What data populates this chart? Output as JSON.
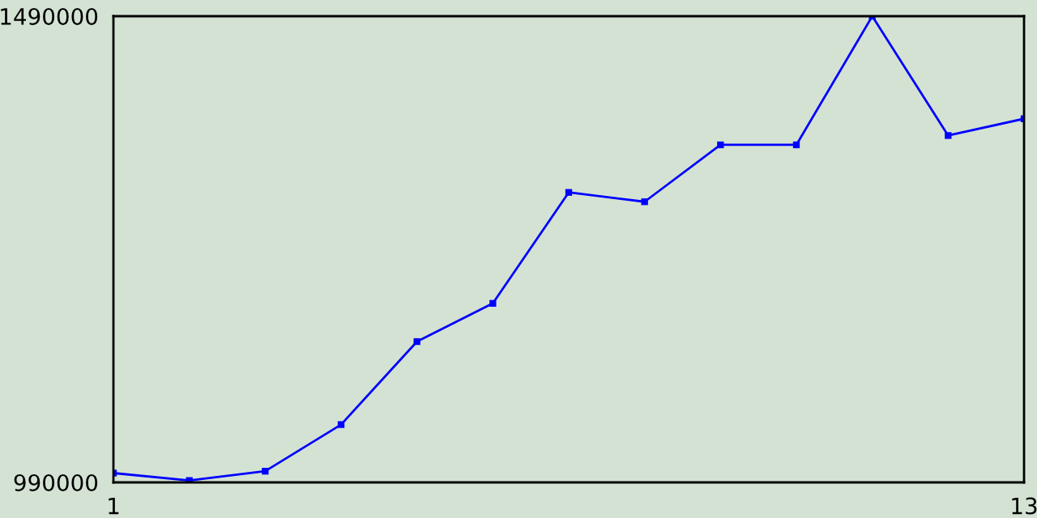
{
  "chart_data": {
    "type": "line",
    "x": [
      1,
      2,
      3,
      4,
      5,
      6,
      7,
      8,
      9,
      10,
      11,
      12,
      13
    ],
    "series": [
      {
        "color": "#0000ff",
        "values": [
          1000000,
          992000,
          1002000,
          1052000,
          1141000,
          1182000,
          1301000,
          1291000,
          1352000,
          1352000,
          1490000,
          1362000,
          1380000
        ]
      }
    ],
    "xlim": [
      1,
      13
    ],
    "xticks": [
      1,
      13
    ],
    "ylim": [
      990000,
      1490000
    ],
    "yticks": [
      990000,
      1490000
    ],
    "marker": "square",
    "line_style": "solid",
    "legend": false
  }
}
